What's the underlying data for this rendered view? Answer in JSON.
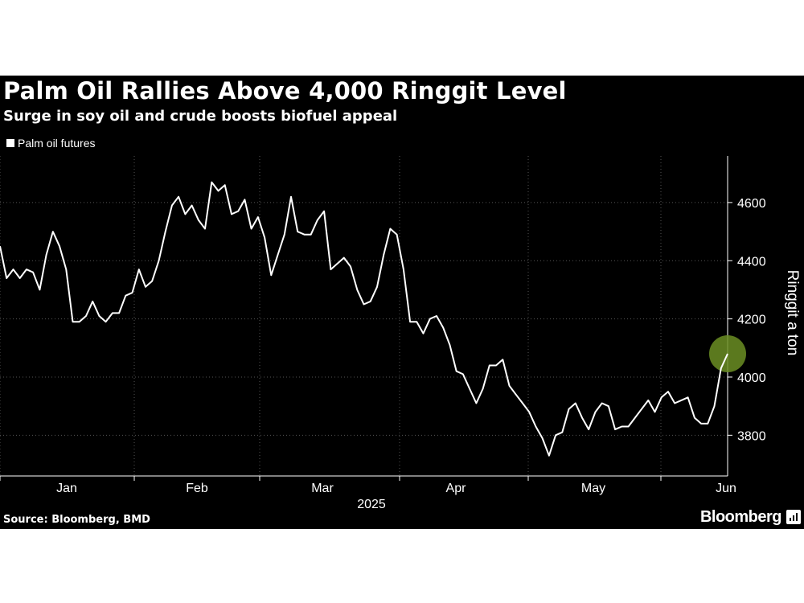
{
  "header": {
    "title": "Palm Oil Rallies Above 4,000 Ringgit Level",
    "subtitle": "Surge in soy oil and crude boosts biofuel appeal"
  },
  "footer": {
    "source": "Source: Bloomberg, BMD",
    "brand": "Bloomberg"
  },
  "colors": {
    "background": "#000000",
    "line": "#ffffff",
    "highlight": "#6b8e23",
    "grid": "#555555"
  },
  "chart_data": {
    "type": "line",
    "title": "Palm Oil Rallies Above 4,000 Ringgit Level",
    "subtitle": "Surge in soy oil and crude boosts biofuel appeal",
    "ylabel": "Ringgit a ton",
    "xlabel": "2025",
    "ylim": [
      3660,
      4760
    ],
    "yticks": [
      3800,
      4000,
      4200,
      4400,
      4600
    ],
    "ytick_labels": [
      "3800",
      "4000",
      "4200",
      "4400",
      "4600"
    ],
    "months": [
      "Jan",
      "Feb",
      "Mar",
      "Apr",
      "May",
      "Jun"
    ],
    "month_boundaries": [
      "Jan 1",
      "Feb 1",
      "Mar 1",
      "Apr 1",
      "May 1",
      "Jun 1"
    ],
    "grid": true,
    "highlight": "last point",
    "series": [
      {
        "name": "Palm oil futures",
        "values": [
          4450,
          4340,
          4370,
          4340,
          4370,
          4360,
          4300,
          4420,
          4500,
          4450,
          4370,
          4190,
          4190,
          4210,
          4260,
          4210,
          4190,
          4220,
          4220,
          4280,
          4290,
          4370,
          4310,
          4330,
          4400,
          4500,
          4590,
          4620,
          4560,
          4590,
          4540,
          4510,
          4670,
          4640,
          4660,
          4560,
          4570,
          4610,
          4510,
          4550,
          4480,
          4350,
          4420,
          4490,
          4620,
          4500,
          4490,
          4490,
          4540,
          4570,
          4370,
          4390,
          4410,
          4380,
          4300,
          4250,
          4260,
          4310,
          4420,
          4510,
          4490,
          4370,
          4190,
          4190,
          4150,
          4200,
          4210,
          4170,
          4110,
          4020,
          4010,
          3960,
          3910,
          3960,
          4040,
          4040,
          4060,
          3970,
          3940,
          3910,
          3880,
          3830,
          3790,
          3730,
          3800,
          3810,
          3890,
          3910,
          3860,
          3820,
          3880,
          3910,
          3900,
          3820,
          3830,
          3830,
          3860,
          3890,
          3920,
          3880,
          3930,
          3950,
          3910,
          3920,
          3930,
          3860,
          3840,
          3840,
          3900,
          4030,
          4080
        ]
      }
    ]
  }
}
